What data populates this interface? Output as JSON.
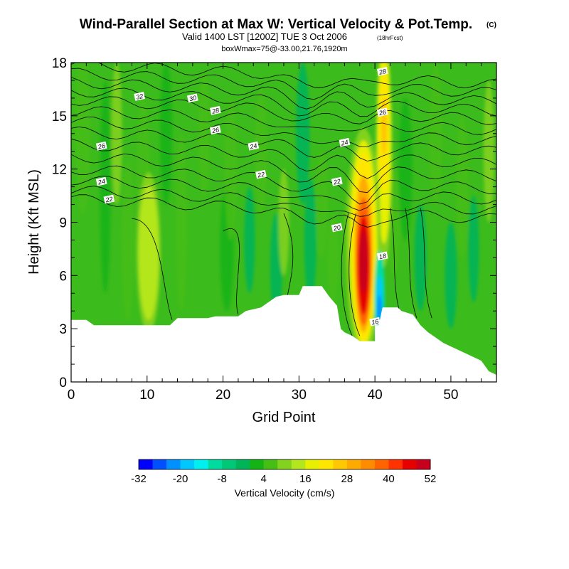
{
  "chart_data": {
    "type": "heatmap",
    "title": "Wind-Parallel Section at Max W: Vertical Velocity & Pot.Temp.",
    "title_mark": "(C)",
    "subtitle": "Valid 1400 LST [1200Z] TUE 3 Oct 2006",
    "subtitle_note": "(18hrFcst)",
    "subtitle2": "boxWmax=75@-33.00,21.76,1920m",
    "xlabel": "Grid Point",
    "ylabel": "Height (Kft MSL)",
    "xlim": [
      0,
      56
    ],
    "ylim": [
      0,
      18
    ],
    "xticks": [
      "0",
      "10",
      "20",
      "30",
      "40",
      "50"
    ],
    "yticks": [
      "0",
      "3",
      "6",
      "9",
      "12",
      "15",
      "18"
    ],
    "colorbar": {
      "label": "Vertical Velocity (cm/s)",
      "tick_labels": [
        "-32",
        "-20",
        "-8",
        "4",
        "16",
        "28",
        "40",
        "52"
      ],
      "min": -32,
      "max": 52,
      "step": 4,
      "colors": [
        "#0000ff",
        "#0050ff",
        "#0090ff",
        "#00c8ff",
        "#00f0f0",
        "#00dca0",
        "#00c878",
        "#00b45a",
        "#14b414",
        "#46be14",
        "#82d21e",
        "#b4e61e",
        "#e6f000",
        "#ffe600",
        "#ffc800",
        "#ffaa00",
        "#ff8c00",
        "#ff6400",
        "#ff3200",
        "#e60000",
        "#c8001e"
      ]
    },
    "terrain": [
      [
        0,
        3.5
      ],
      [
        1,
        3.5
      ],
      [
        2,
        3.5
      ],
      [
        3,
        3.2
      ],
      [
        8,
        3.2
      ],
      [
        10,
        3.2
      ],
      [
        13,
        3.2
      ],
      [
        14,
        3.6
      ],
      [
        18,
        3.6
      ],
      [
        19,
        3.7
      ],
      [
        22,
        3.7
      ],
      [
        23,
        4.0
      ],
      [
        25,
        4.2
      ],
      [
        26,
        4.5
      ],
      [
        27,
        4.8
      ],
      [
        28,
        4.9
      ],
      [
        30,
        4.9
      ],
      [
        30.5,
        5.4
      ],
      [
        33,
        5.4
      ],
      [
        34,
        4.8
      ],
      [
        35,
        4.3
      ],
      [
        35.5,
        3.0
      ],
      [
        36,
        2.8
      ],
      [
        37,
        2.6
      ],
      [
        38,
        2.3
      ],
      [
        40,
        2.3
      ],
      [
        40,
        3.2
      ],
      [
        40.5,
        3.2
      ],
      [
        41,
        4.2
      ],
      [
        43,
        4.2
      ],
      [
        43.5,
        4.0
      ],
      [
        45,
        3.8
      ],
      [
        46,
        3.2
      ],
      [
        47,
        2.8
      ],
      [
        48,
        2.5
      ],
      [
        49,
        2.2
      ],
      [
        50,
        2.0
      ],
      [
        51,
        1.8
      ],
      [
        52,
        1.6
      ],
      [
        53,
        1.4
      ],
      [
        54,
        1.2
      ],
      [
        55,
        0.6
      ],
      [
        56,
        0.4
      ]
    ],
    "features": [
      {
        "name": "main updraft core",
        "x": 38.5,
        "y": 6.5,
        "w_cm_s": 50
      },
      {
        "name": "upper updraft",
        "x": 41.2,
        "y": 14.0,
        "w_cm_s": 24
      },
      {
        "name": "updraft near 38 aloft",
        "x": 38,
        "y": 10.5,
        "w_cm_s": 20
      },
      {
        "name": "downdraft",
        "x": 40.5,
        "y": 4.5,
        "w_cm_s": -24
      },
      {
        "name": "left updraft",
        "x": 10,
        "y": 7.3,
        "w_cm_s": 14
      }
    ],
    "isentrope_labels": [
      {
        "text": "32",
        "x": 9,
        "y": 16.1
      },
      {
        "text": "30",
        "x": 16,
        "y": 16.0
      },
      {
        "text": "28",
        "x": 19,
        "y": 15.3
      },
      {
        "text": "26",
        "x": 19,
        "y": 14.2
      },
      {
        "text": "26",
        "x": 4,
        "y": 13.3
      },
      {
        "text": "24",
        "x": 24,
        "y": 13.3
      },
      {
        "text": "22",
        "x": 25,
        "y": 11.7
      },
      {
        "text": "24",
        "x": 4,
        "y": 11.3
      },
      {
        "text": "22",
        "x": 5,
        "y": 10.3
      },
      {
        "text": "22",
        "x": 35,
        "y": 11.3
      },
      {
        "text": "24",
        "x": 36,
        "y": 13.5
      },
      {
        "text": "20",
        "x": 35,
        "y": 8.7
      },
      {
        "text": "18",
        "x": 41,
        "y": 7.1
      },
      {
        "text": "16",
        "x": 40,
        "y": 3.4
      },
      {
        "text": "28",
        "x": 41,
        "y": 17.5
      },
      {
        "text": "26",
        "x": 41,
        "y": 15.2
      }
    ]
  }
}
